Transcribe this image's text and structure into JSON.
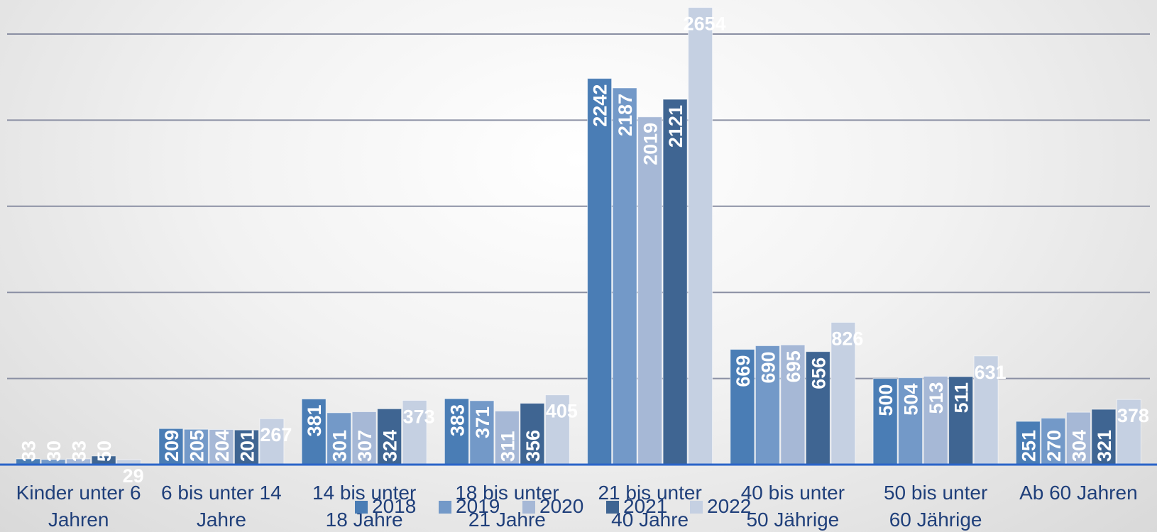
{
  "chart_data": {
    "type": "bar",
    "categories": [
      [
        "Kinder unter 6",
        "Jahren"
      ],
      [
        "6 bis unter 14",
        "Jahre"
      ],
      [
        "14 bis unter",
        "18 Jahre"
      ],
      [
        "18 bis unter",
        "21 Jahre"
      ],
      [
        "21 bis unter",
        "40 Jahre"
      ],
      [
        "40 bis unter",
        "50 Jährige"
      ],
      [
        "50 bis unter",
        "60 Jährige"
      ],
      [
        "Ab 60 Jahren"
      ]
    ],
    "series": [
      {
        "name": "2018",
        "color": "#4a7db5",
        "values": [
          33,
          209,
          381,
          383,
          2242,
          669,
          500,
          251
        ]
      },
      {
        "name": "2019",
        "color": "#7399c8",
        "values": [
          30,
          205,
          301,
          371,
          2187,
          690,
          504,
          270
        ]
      },
      {
        "name": "2020",
        "color": "#a6b8d6",
        "values": [
          33,
          204,
          307,
          311,
          2019,
          695,
          513,
          304
        ]
      },
      {
        "name": "2021",
        "color": "#3f6592",
        "values": [
          50,
          201,
          324,
          356,
          2121,
          656,
          511,
          321
        ]
      },
      {
        "name": "2022",
        "color": "#c5d0e2",
        "values": [
          29,
          267,
          373,
          405,
          2654,
          826,
          631,
          378
        ]
      }
    ],
    "ylim": [
      0,
      2700
    ],
    "gridlines": [
      500,
      1000,
      1500,
      2000,
      2500
    ],
    "grid": true,
    "legend_position": "bottom"
  }
}
